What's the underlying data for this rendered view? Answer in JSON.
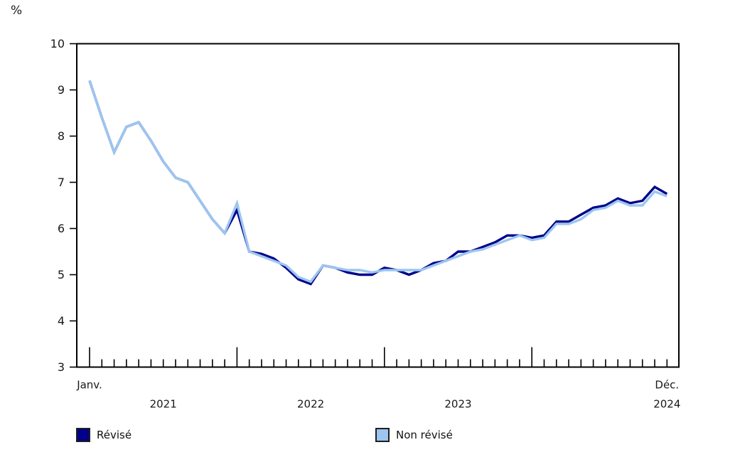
{
  "unit_label": "%",
  "legend": {
    "revised_label": "Révisé",
    "unrevised_label": "Non révisé"
  },
  "colors": {
    "revised": "#00008B",
    "unrevised": "#9CC6F1",
    "axis": "#000000",
    "text": "#1a1a1a"
  },
  "chart_data": {
    "type": "line",
    "title": "",
    "xlabel": "",
    "ylabel": "%",
    "ylim": [
      3,
      10
    ],
    "y_ticks": [
      "10",
      "9",
      "8",
      "7",
      "6",
      "5",
      "4",
      "3"
    ],
    "y_tick_values": [
      10,
      9,
      8,
      7,
      6,
      5,
      4,
      3
    ],
    "grid": false,
    "legend_position": "bottom",
    "x_axis": {
      "first_month_label": "Janv.",
      "last_month_label": "Déc.",
      "year_labels": [
        "2021",
        "2022",
        "2023",
        "2024"
      ],
      "months_total": 48
    },
    "series": [
      {
        "name": "Révisé",
        "color": "#00008B",
        "values": [
          9.2,
          8.4,
          7.65,
          8.2,
          8.3,
          7.9,
          7.45,
          7.1,
          7.0,
          6.6,
          6.2,
          5.9,
          6.4,
          5.5,
          5.45,
          5.35,
          5.15,
          4.9,
          4.8,
          5.2,
          5.15,
          5.05,
          5.0,
          5.0,
          5.15,
          5.1,
          5.0,
          5.1,
          5.25,
          5.3,
          5.5,
          5.5,
          5.6,
          5.7,
          5.85,
          5.85,
          5.8,
          5.85,
          6.15,
          6.15,
          6.3,
          6.45,
          6.5,
          6.65,
          6.55,
          6.6,
          6.9,
          6.75
        ]
      },
      {
        "name": "Non révisé",
        "color": "#9CC6F1",
        "values": [
          9.2,
          8.4,
          7.65,
          8.2,
          8.3,
          7.9,
          7.45,
          7.1,
          7.0,
          6.6,
          6.2,
          5.9,
          6.55,
          5.5,
          5.4,
          5.3,
          5.2,
          4.95,
          4.85,
          5.2,
          5.15,
          5.1,
          5.1,
          5.05,
          5.1,
          5.1,
          5.1,
          5.1,
          5.2,
          5.3,
          5.4,
          5.5,
          5.55,
          5.65,
          5.75,
          5.85,
          5.75,
          5.8,
          6.1,
          6.1,
          6.2,
          6.4,
          6.45,
          6.6,
          6.5,
          6.5,
          6.8,
          6.7
        ]
      }
    ]
  }
}
